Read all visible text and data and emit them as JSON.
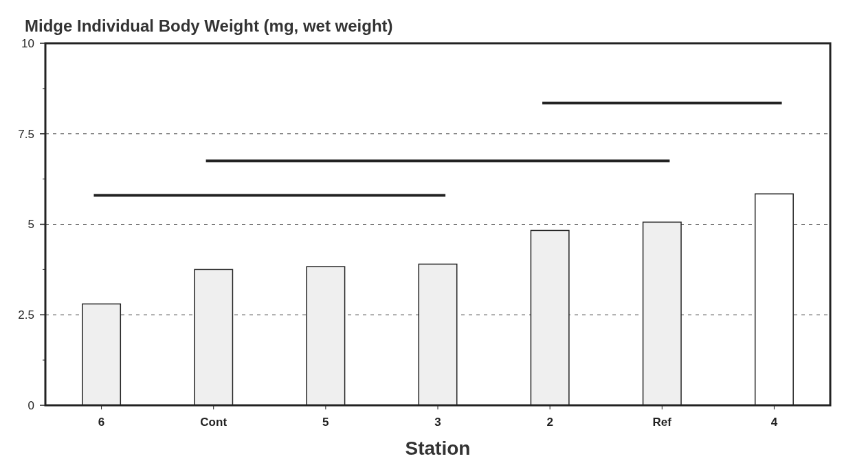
{
  "chart_data": {
    "type": "bar",
    "title": "Midge Individual Body Weight (mg, wet weight)",
    "xlabel": "Station",
    "categories": [
      "6",
      "Cont",
      "5",
      "3",
      "2",
      "Ref",
      "4"
    ],
    "values": [
      2.8,
      3.75,
      3.83,
      3.9,
      4.83,
      5.06,
      5.84
    ],
    "colors": [
      "#efefef",
      "#efefef",
      "#efefef",
      "#efefef",
      "#efefef",
      "#efefef",
      "#ffffff"
    ],
    "ylim": [
      0,
      10
    ],
    "yticks": [
      0,
      2.5,
      5,
      7.5,
      10
    ],
    "grid": "y"
  }
}
